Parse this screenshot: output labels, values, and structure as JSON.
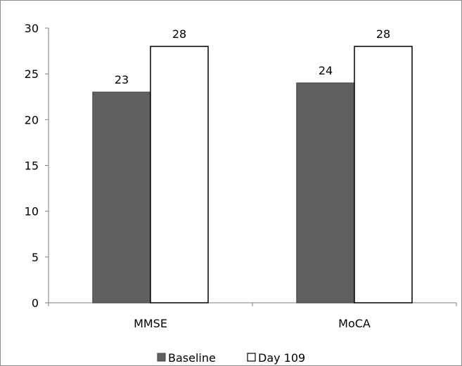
{
  "chart_data": {
    "type": "bar",
    "categories": [
      "MMSE",
      "MoCA"
    ],
    "series": [
      {
        "name": "Baseline",
        "values": [
          23,
          24
        ],
        "color": "#606060",
        "stroke": "#505050"
      },
      {
        "name": "Day 109",
        "values": [
          28,
          28
        ],
        "color": "#ffffff",
        "stroke": "#000000"
      }
    ],
    "ylim": [
      0,
      30
    ],
    "yticks": [
      0,
      5,
      10,
      15,
      20,
      25,
      30
    ],
    "data_labels": true,
    "grid": false,
    "legend_position": "bottom"
  }
}
